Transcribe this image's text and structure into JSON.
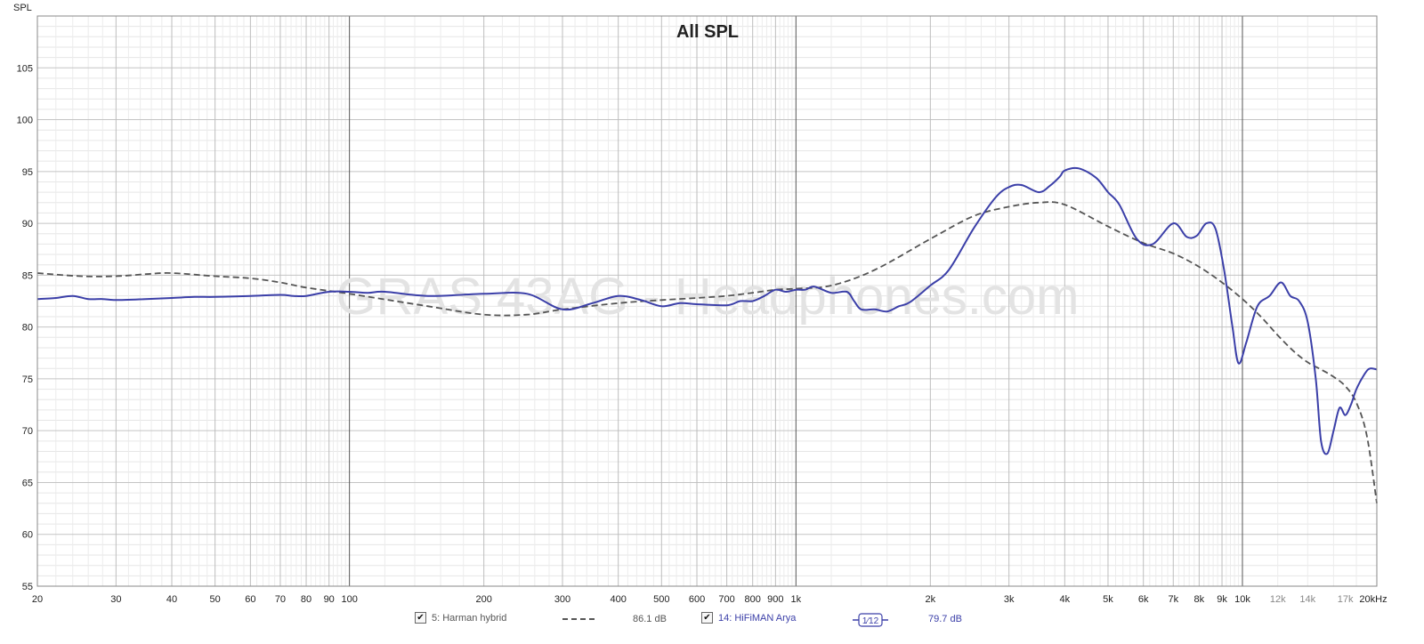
{
  "chart_data": {
    "type": "line",
    "title": "All SPL",
    "ylabel": "SPL",
    "watermark": "GRAS 43AG - Headphones.com",
    "x_scale": "log",
    "xlim": [
      20,
      20000
    ],
    "ylim": [
      55,
      110
    ],
    "grid": true,
    "x_ticks": [
      {
        "v": 20,
        "label": "20"
      },
      {
        "v": 30,
        "label": "30"
      },
      {
        "v": 40,
        "label": "40"
      },
      {
        "v": 50,
        "label": "50"
      },
      {
        "v": 60,
        "label": "60"
      },
      {
        "v": 70,
        "label": "70"
      },
      {
        "v": 80,
        "label": "80"
      },
      {
        "v": 90,
        "label": "90"
      },
      {
        "v": 100,
        "label": "100"
      },
      {
        "v": 200,
        "label": "200"
      },
      {
        "v": 300,
        "label": "300"
      },
      {
        "v": 400,
        "label": "400"
      },
      {
        "v": 500,
        "label": "500"
      },
      {
        "v": 600,
        "label": "600"
      },
      {
        "v": 700,
        "label": "700"
      },
      {
        "v": 800,
        "label": "800"
      },
      {
        "v": 900,
        "label": "900"
      },
      {
        "v": 1000,
        "label": "1k"
      },
      {
        "v": 2000,
        "label": "2k"
      },
      {
        "v": 3000,
        "label": "3k"
      },
      {
        "v": 4000,
        "label": "4k"
      },
      {
        "v": 5000,
        "label": "5k"
      },
      {
        "v": 6000,
        "label": "6k"
      },
      {
        "v": 7000,
        "label": "7k"
      },
      {
        "v": 8000,
        "label": "8k"
      },
      {
        "v": 9000,
        "label": "9k"
      },
      {
        "v": 10000,
        "label": "10k"
      },
      {
        "v": 12000,
        "label": "12k",
        "minor": true
      },
      {
        "v": 14000,
        "label": "14k",
        "minor": true
      },
      {
        "v": 17000,
        "label": "17k",
        "minor": true
      },
      {
        "v": 20000,
        "label": "20kHz"
      }
    ],
    "y_ticks": [
      55,
      60,
      65,
      70,
      75,
      80,
      85,
      90,
      95,
      100,
      105
    ],
    "series": [
      {
        "name": "5: Harman hybrid",
        "value_label": "86.1 dB",
        "color": "#555555",
        "style": "dashed",
        "x": [
          20,
          25,
          30,
          35,
          40,
          50,
          60,
          70,
          80,
          100,
          150,
          200,
          250,
          300,
          400,
          500,
          600,
          700,
          800,
          900,
          1000,
          1200,
          1500,
          2000,
          2500,
          3000,
          3500,
          4000,
          5000,
          6000,
          7000,
          8000,
          9000,
          10000,
          11000,
          12000,
          13000,
          14000,
          15000,
          16000,
          17000,
          18000,
          19000,
          20000
        ],
        "y": [
          85.2,
          84.9,
          84.9,
          85.1,
          85.2,
          84.9,
          84.7,
          84.3,
          83.8,
          83.2,
          82.0,
          81.2,
          81.2,
          81.7,
          82.3,
          82.6,
          82.8,
          83.0,
          83.3,
          83.6,
          83.7,
          84.0,
          85.5,
          88.5,
          90.7,
          91.6,
          92.0,
          91.8,
          89.7,
          88.1,
          87.1,
          85.8,
          84.3,
          82.7,
          81.0,
          79.2,
          77.7,
          76.6,
          75.9,
          75.2,
          74.3,
          72.7,
          69.5,
          63.0
        ]
      },
      {
        "name": "14: HiFiMAN Arya",
        "value_label": "79.7 dB",
        "smoothing": "1⁄12",
        "color": "#3b3fa8",
        "style": "solid",
        "x": [
          20,
          22,
          24,
          26,
          28,
          30,
          35,
          40,
          45,
          50,
          60,
          70,
          75,
          80,
          90,
          100,
          110,
          120,
          150,
          200,
          250,
          300,
          350,
          400,
          450,
          500,
          550,
          600,
          700,
          750,
          800,
          850,
          900,
          950,
          1000,
          1050,
          1100,
          1200,
          1300,
          1350,
          1400,
          1500,
          1600,
          1700,
          1800,
          2000,
          2200,
          2500,
          2800,
          3000,
          3200,
          3500,
          3700,
          3900,
          4000,
          4300,
          4700,
          5000,
          5300,
          5800,
          6300,
          7000,
          7500,
          7900,
          8300,
          8700,
          9100,
          9500,
          9800,
          10200,
          10800,
          11500,
          12200,
          12800,
          13400,
          14000,
          14600,
          15000,
          15500,
          16000,
          16500,
          17000,
          17500,
          18000,
          18800,
          19300,
          20000
        ],
        "y": [
          82.7,
          82.8,
          83.0,
          82.7,
          82.7,
          82.6,
          82.7,
          82.8,
          82.9,
          82.9,
          83.0,
          83.1,
          83.0,
          83.0,
          83.4,
          83.4,
          83.3,
          83.4,
          83.0,
          83.2,
          83.2,
          81.7,
          82.3,
          83.0,
          82.6,
          82.0,
          82.3,
          82.2,
          82.1,
          82.5,
          82.5,
          83.0,
          83.6,
          83.4,
          83.6,
          83.6,
          83.9,
          83.3,
          83.4,
          82.5,
          81.7,
          81.7,
          81.5,
          82.0,
          82.4,
          84.0,
          85.5,
          89.5,
          92.5,
          93.5,
          93.7,
          93.0,
          93.6,
          94.5,
          95.1,
          95.3,
          94.4,
          93.0,
          91.8,
          88.5,
          88.0,
          90.0,
          88.7,
          88.8,
          90.0,
          89.5,
          85.5,
          80.0,
          76.5,
          78.5,
          82.0,
          83.0,
          84.3,
          83.0,
          82.5,
          80.5,
          75.0,
          69.0,
          67.8,
          70.0,
          72.2,
          71.5,
          72.5,
          74.0,
          75.5,
          76.0,
          75.9
        ]
      }
    ]
  }
}
